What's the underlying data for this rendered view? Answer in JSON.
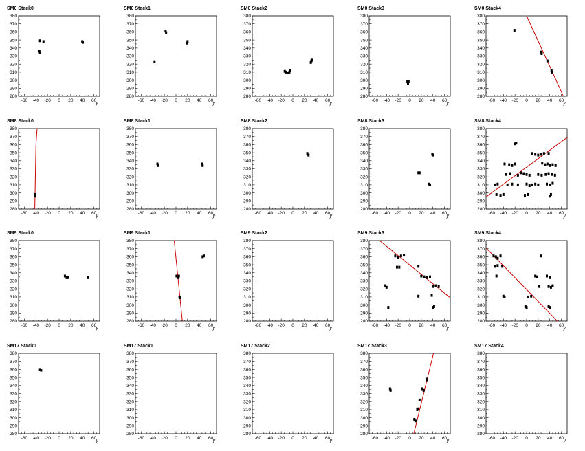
{
  "figure": {
    "x_axis_label": "y",
    "x_ticks": [
      -60,
      -40,
      -20,
      0,
      20,
      40,
      60
    ],
    "y_ticks": [
      280,
      290,
      300,
      310,
      320,
      330,
      340,
      350,
      360,
      370,
      380
    ],
    "xlim": [
      -70,
      70
    ],
    "ylim": [
      280,
      380
    ],
    "fit_color": "#cc0000",
    "point_color": "#000000"
  },
  "chart_data": [
    {
      "title": "SM0 Stack0",
      "type": "scatter",
      "points": [
        [
          -33,
          349
        ],
        [
          -27,
          348
        ],
        [
          -34,
          336
        ],
        [
          40,
          348
        ],
        [
          41,
          347
        ],
        [
          -33,
          334
        ]
      ],
      "fit": null
    },
    {
      "title": "SM0 Stack1",
      "type": "scatter",
      "points": [
        [
          -18,
          361
        ],
        [
          -17,
          359
        ],
        [
          20,
          348
        ],
        [
          19,
          346
        ],
        [
          -37,
          323
        ]
      ],
      "fit": null
    },
    {
      "title": "SM0 Stack2",
      "type": "scatter",
      "points": [
        [
          -14,
          311
        ],
        [
          -12,
          310
        ],
        [
          -9,
          309
        ],
        [
          -6,
          310
        ],
        [
          -5,
          312
        ],
        [
          31,
          322
        ],
        [
          32,
          324
        ],
        [
          33,
          325
        ]
      ],
      "fit": null
    },
    {
      "title": "SM0 Stack3",
      "type": "scatter",
      "points": [
        [
          -4,
          298
        ],
        [
          -3,
          296
        ],
        [
          -2,
          298
        ]
      ],
      "fit": null
    },
    {
      "title": "SM0 Stack4",
      "type": "scatter",
      "points": [
        [
          -21,
          362
        ],
        [
          25,
          335
        ],
        [
          26,
          333
        ],
        [
          36,
          324
        ],
        [
          43,
          312
        ],
        [
          44,
          310
        ]
      ],
      "fit": [
        [
          0,
          380
        ],
        [
          63,
          281
        ]
      ]
    },
    {
      "title": "SM8 Stack0",
      "type": "scatter",
      "points": [
        [
          -41,
          296
        ],
        [
          -41,
          298
        ]
      ],
      "fit": [
        [
          -42,
          280
        ],
        [
          -40,
          360
        ],
        [
          -38,
          380
        ]
      ]
    },
    {
      "title": "SM8 Stack1",
      "type": "scatter",
      "points": [
        [
          -32,
          336
        ],
        [
          -31,
          334
        ],
        [
          45,
          336
        ],
        [
          46,
          334
        ]
      ],
      "fit": null
    },
    {
      "title": "SM8 Stack2",
      "type": "scatter",
      "points": [
        [
          25,
          349
        ],
        [
          27,
          347
        ]
      ],
      "fit": null
    },
    {
      "title": "SM8 Stack3",
      "type": "scatter",
      "points": [
        [
          15,
          325
        ],
        [
          17,
          325
        ],
        [
          33,
          311
        ],
        [
          35,
          310
        ],
        [
          39,
          348
        ],
        [
          40,
          347
        ]
      ],
      "fit": null
    },
    {
      "title": "SM8 Stack4",
      "type": "scatter",
      "points": [
        [
          -55,
          310
        ],
        [
          -50,
          311
        ],
        [
          -45,
          297
        ],
        [
          -40,
          298
        ],
        [
          -52,
          298
        ],
        [
          -38,
          336
        ],
        [
          -30,
          335
        ],
        [
          -25,
          334
        ],
        [
          -20,
          336
        ],
        [
          -35,
          323
        ],
        [
          -28,
          324
        ],
        [
          -15,
          322
        ],
        [
          -10,
          325
        ],
        [
          -5,
          324
        ],
        [
          0,
          323
        ],
        [
          5,
          322
        ],
        [
          -33,
          310
        ],
        [
          -25,
          311
        ],
        [
          -15,
          310
        ],
        [
          0,
          311
        ],
        [
          5,
          309
        ],
        [
          10,
          310
        ],
        [
          15,
          311
        ],
        [
          20,
          310
        ],
        [
          -3,
          297
        ],
        [
          2,
          298
        ],
        [
          10,
          349
        ],
        [
          15,
          348
        ],
        [
          20,
          347
        ],
        [
          25,
          348
        ],
        [
          30,
          349
        ],
        [
          38,
          349
        ],
        [
          27,
          337
        ],
        [
          32,
          335
        ],
        [
          36,
          336
        ],
        [
          40,
          334
        ],
        [
          45,
          335
        ],
        [
          50,
          334
        ],
        [
          20,
          323
        ],
        [
          26,
          322
        ],
        [
          33,
          323
        ],
        [
          38,
          324
        ],
        [
          44,
          323
        ],
        [
          49,
          322
        ],
        [
          -20,
          361
        ],
        [
          -18,
          362
        ],
        [
          35,
          311
        ],
        [
          40,
          310
        ],
        [
          45,
          312
        ],
        [
          40,
          296
        ],
        [
          42,
          298
        ]
      ],
      "fit": [
        [
          -70,
          295
        ],
        [
          70,
          369
        ]
      ]
    },
    {
      "title": "SM9 Stack0",
      "type": "scatter",
      "points": [
        [
          10,
          336
        ],
        [
          13,
          334
        ],
        [
          16,
          334
        ],
        [
          50,
          334
        ]
      ],
      "fit": null
    },
    {
      "title": "SM9 Stack1",
      "type": "scatter",
      "points": [
        [
          1,
          336
        ],
        [
          4,
          334
        ],
        [
          5,
          336
        ],
        [
          6,
          310
        ],
        [
          7,
          309
        ],
        [
          46,
          360
        ],
        [
          48,
          361
        ]
      ],
      "fit": [
        [
          -3,
          380
        ],
        [
          11,
          280
        ]
      ]
    },
    {
      "title": "SM9 Stack2",
      "type": "scatter",
      "points": [],
      "fit": null
    },
    {
      "title": "SM9 Stack3",
      "type": "scatter",
      "points": [
        [
          -25,
          361
        ],
        [
          -20,
          359
        ],
        [
          -15,
          361
        ],
        [
          -10,
          362
        ],
        [
          -22,
          347
        ],
        [
          -18,
          347
        ],
        [
          -42,
          324
        ],
        [
          -40,
          322
        ],
        [
          -37,
          297
        ],
        [
          15,
          348
        ],
        [
          20,
          336
        ],
        [
          25,
          335
        ],
        [
          30,
          334
        ],
        [
          35,
          335
        ],
        [
          40,
          323
        ],
        [
          45,
          324
        ],
        [
          50,
          323
        ],
        [
          38,
          312
        ],
        [
          15,
          311
        ],
        [
          40,
          297
        ],
        [
          42,
          298
        ]
      ],
      "fit": [
        [
          -52,
          380
        ],
        [
          70,
          309
        ]
      ]
    },
    {
      "title": "SM9 Stack4",
      "type": "scatter",
      "points": [
        [
          -57,
          361
        ],
        [
          -53,
          360
        ],
        [
          -50,
          358
        ],
        [
          -45,
          361
        ],
        [
          -55,
          348
        ],
        [
          -50,
          349
        ],
        [
          -42,
          348
        ],
        [
          -52,
          336
        ],
        [
          -40,
          311
        ],
        [
          -38,
          310
        ],
        [
          25,
          361
        ],
        [
          15,
          336
        ],
        [
          18,
          335
        ],
        [
          22,
          323
        ],
        [
          35,
          336
        ],
        [
          40,
          334
        ],
        [
          38,
          323
        ],
        [
          42,
          322
        ],
        [
          45,
          324
        ],
        [
          3,
          310
        ],
        [
          8,
          311
        ],
        [
          -2,
          298
        ],
        [
          0,
          297
        ],
        [
          38,
          298
        ],
        [
          40,
          297
        ]
      ],
      "fit": [
        [
          -70,
          371
        ],
        [
          53,
          280
        ]
      ]
    },
    {
      "title": "SM17 Stack0",
      "type": "scatter",
      "points": [
        [
          -33,
          360
        ],
        [
          -31,
          359
        ]
      ],
      "fit": null
    },
    {
      "title": "SM17 Stack1",
      "type": "scatter",
      "points": [],
      "fit": null
    },
    {
      "title": "SM17 Stack2",
      "type": "scatter",
      "points": [],
      "fit": null
    },
    {
      "title": "SM17 Stack3",
      "type": "scatter",
      "points": [
        [
          -34,
          336
        ],
        [
          -33,
          334
        ],
        [
          8,
          298
        ],
        [
          10,
          296
        ],
        [
          13,
          310
        ],
        [
          15,
          311
        ],
        [
          17,
          322
        ],
        [
          22,
          336
        ],
        [
          24,
          334
        ],
        [
          29,
          348
        ],
        [
          30,
          347
        ]
      ],
      "fit": [
        [
          7,
          280
        ],
        [
          41,
          380
        ]
      ]
    },
    {
      "title": "SM17 Stack4",
      "type": "scatter",
      "points": [],
      "fit": null
    }
  ]
}
